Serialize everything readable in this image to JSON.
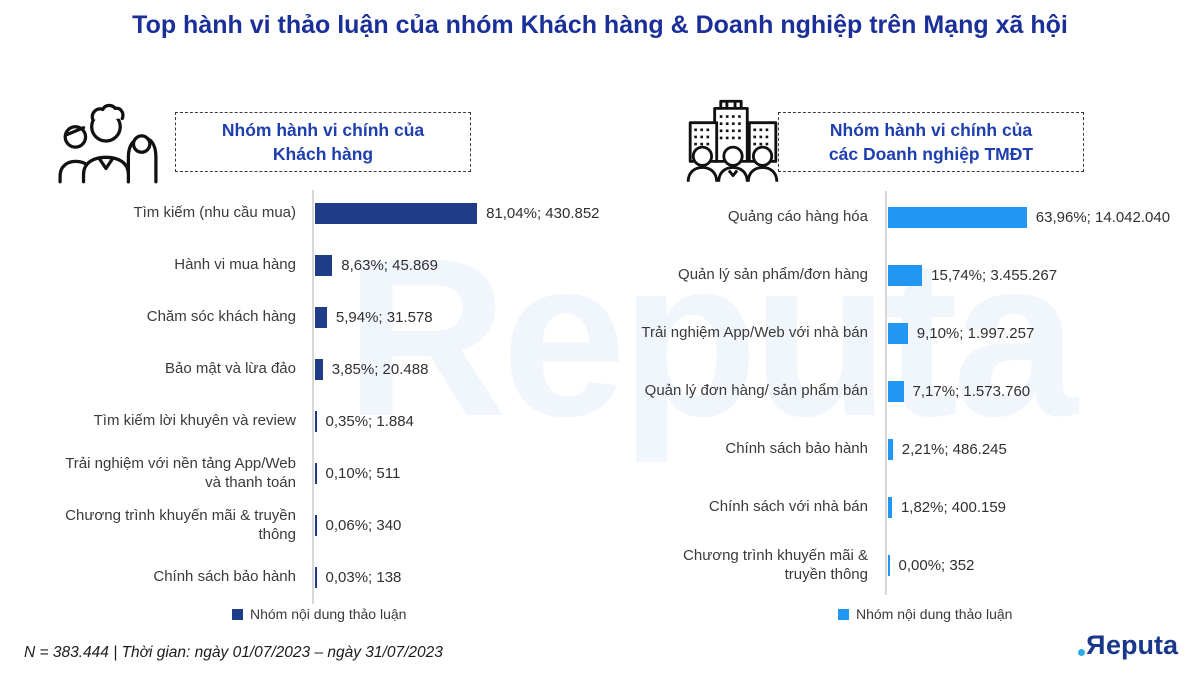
{
  "title": "Top hành vi thảo luận của nhóm Khách hàng & Doanh nghiệp trên Mạng xã hội",
  "watermark": "Reputa",
  "panels": [
    {
      "icon": "people-group-icon",
      "header_line1": "Nhóm hành vi chính của",
      "header_line2": "Khách hàng",
      "legend_label": "Nhóm nội dung thảo luận"
    },
    {
      "icon": "buildings-people-icon",
      "header_line1": "Nhóm hành vi chính của",
      "header_line2": "các Doanh nghiệp TMĐT",
      "legend_label": "Nhóm nội dung thảo luận"
    }
  ],
  "chart_data": [
    {
      "type": "bar",
      "orientation": "horizontal",
      "title": "Nhóm hành vi chính của Khách hàng",
      "legend": [
        "Nhóm nội dung thảo luận"
      ],
      "legend_position": "bottom",
      "grid": false,
      "xlim_percent": [
        0,
        100
      ],
      "categories": [
        "Tìm kiếm (nhu cầu mua)",
        "Hành vi mua hàng",
        "Chăm sóc khách hàng",
        "Bảo mật và lừa đảo",
        "Tìm kiếm lời khuyên và review",
        "Trải nghiệm với nền tảng App/Web và thanh toán",
        "Chương trình khuyến mãi & truyền thông",
        "Chính sách bảo hành"
      ],
      "percents": [
        81.04,
        8.63,
        5.94,
        3.85,
        0.35,
        0.1,
        0.06,
        0.03
      ],
      "counts": [
        430852,
        45869,
        31578,
        20488,
        1884,
        511,
        340,
        138
      ],
      "data_labels": [
        "81,04%; 430.852",
        "8,63%; 45.869",
        "5,94%; 31.578",
        "3,85%; 20.488",
        "0,35%; 1.884",
        "0,10%; 511",
        "0,06%; 340",
        "0,03%; 138"
      ],
      "bar_color": "#1F3C88"
    },
    {
      "type": "bar",
      "orientation": "horizontal",
      "title": "Nhóm hành vi chính của các Doanh nghiệp TMĐT",
      "legend": [
        "Nhóm nội dung thảo luận"
      ],
      "legend_position": "bottom",
      "grid": false,
      "xlim_percent": [
        0,
        100
      ],
      "categories": [
        "Quảng cáo hàng hóa",
        "Quản lý sản phẩm/đơn hàng",
        "Trải nghiệm App/Web với nhà bán",
        "Quản lý đơn hàng/ sản phẩm bán",
        "Chính sách bảo hành",
        "Chính sách với nhà bán",
        "Chương trình khuyến mãi & truyền thông"
      ],
      "percents": [
        63.96,
        15.74,
        9.1,
        7.17,
        2.21,
        1.82,
        0.0
      ],
      "counts": [
        14042040,
        3455267,
        1997257,
        1573760,
        486245,
        400159,
        352
      ],
      "data_labels": [
        "63,96%; 14.042.040",
        "15,74%; 3.455.267",
        "9,10%; 1.997.257",
        "7,17%; 1.573.760",
        "2,21%; 486.245",
        "1,82%; 400.159",
        "0,00%; 352"
      ],
      "bar_color": "#2196F3"
    }
  ],
  "footer_note": "N = 383.444 | Thời gian: ngày 01/07/2023 – ngày 31/07/2023",
  "logo": {
    "mirrored_letter": "R",
    "rest": "eputa"
  },
  "colors": {
    "title_blue": "#1B2F99",
    "header_blue": "#1E3FAD",
    "customer_bar": "#1F3C88",
    "business_bar": "#2196F3",
    "axis_gray": "#D8D8D8",
    "text_dark": "#3A3A3A",
    "logo_navy": "#19388A",
    "logo_dot": "#2FA9E1",
    "watermark_blue": "#F0F6FC"
  }
}
